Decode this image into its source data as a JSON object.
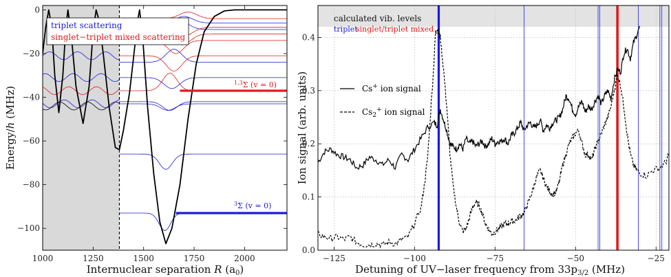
{
  "chart_data": [
    {
      "type": "line",
      "xlabel_main": "Internuclear separation ",
      "xlabel_var": "R",
      "xlabel_unit": " (a",
      "xlabel_sub": "0",
      "xlabel_close": ")",
      "ylabel_main": "Energy/",
      "ylabel_var": "h",
      "ylabel_unit": " (MHz)",
      "xlim": [
        1000,
        2210
      ],
      "ylim": [
        -110,
        2
      ],
      "xticks": [
        1000,
        1250,
        1500,
        1750,
        2000
      ],
      "yticks": [
        0,
        -20,
        -40,
        -60,
        -80,
        -100
      ],
      "xtick_labels": [
        "1000",
        "1250",
        "1500",
        "1750",
        "2000"
      ],
      "ytick_labels": [
        "0",
        "−20",
        "−40",
        "−60",
        "−80",
        "−100"
      ],
      "shaded_region": [
        1000,
        1380
      ],
      "cutoff_x": 1380,
      "legend": [
        {
          "label": "triplet scattering",
          "color": "#1a1adb"
        },
        {
          "label": "singlet−triplet mixed scattering",
          "color": "#e01b1b"
        }
      ],
      "potential_main": {
        "color": "#000000",
        "points": [
          [
            1380,
            -64
          ],
          [
            1400,
            -55
          ],
          [
            1430,
            -38
          ],
          [
            1450,
            -22
          ],
          [
            1470,
            -5
          ],
          [
            1480,
            0
          ],
          [
            1495,
            -12
          ],
          [
            1520,
            -45
          ],
          [
            1550,
            -75
          ],
          [
            1580,
            -97
          ],
          [
            1610,
            -107
          ],
          [
            1640,
            -100
          ],
          [
            1680,
            -80
          ],
          [
            1720,
            -50
          ],
          [
            1760,
            -25
          ],
          [
            1800,
            -10
          ],
          [
            1850,
            -3
          ],
          [
            1900,
            -0.5
          ],
          [
            1950,
            0
          ],
          [
            2210,
            0
          ]
        ]
      },
      "potential_inner": {
        "color": "#000000",
        "points": [
          [
            1000,
            -20
          ],
          [
            1015,
            -8
          ],
          [
            1030,
            0
          ],
          [
            1045,
            -8
          ],
          [
            1060,
            -30
          ],
          [
            1080,
            -47
          ],
          [
            1100,
            -30
          ],
          [
            1115,
            -8
          ],
          [
            1125,
            0
          ],
          [
            1140,
            -10
          ],
          [
            1165,
            -35
          ],
          [
            1200,
            -52
          ],
          [
            1230,
            -35
          ],
          [
            1250,
            -10
          ],
          [
            1265,
            0
          ],
          [
            1280,
            -5
          ],
          [
            1300,
            -20
          ],
          [
            1330,
            -45
          ],
          [
            1360,
            -63
          ],
          [
            1380,
            -64
          ]
        ]
      },
      "triplet_levels": [
        {
          "energy": -6,
          "bump": 3,
          "center": 1700,
          "width": 60
        },
        {
          "energy": -9,
          "bump": 4,
          "center": 1680,
          "width": 60
        },
        {
          "energy": -24,
          "bump": 6,
          "center": 1650,
          "width": 55
        },
        {
          "energy": -31,
          "bump": -5,
          "center": 1640,
          "width": 55
        },
        {
          "energy": -42,
          "bump": -4,
          "center": 1630,
          "width": 50
        },
        {
          "energy": -43,
          "bump": -3,
          "center": 1620,
          "width": 50
        },
        {
          "energy": -66,
          "bump": -7,
          "center": 1610,
          "width": 45
        },
        {
          "energy": -93,
          "bump": -8,
          "center": 1605,
          "width": 40
        }
      ],
      "mixed_levels": [
        {
          "energy": -4,
          "bump": 3,
          "center": 1720,
          "width": 60
        },
        {
          "energy": -8,
          "bump": -4,
          "center": 1700,
          "width": 60
        },
        {
          "energy": -11,
          "bump": -5,
          "center": 1690,
          "width": 60
        },
        {
          "energy": -14,
          "bump": -6,
          "center": 1660,
          "width": 55
        },
        {
          "energy": -21,
          "bump": -7,
          "center": 1650,
          "width": 55
        },
        {
          "energy": -37,
          "bump": 8,
          "center": 1630,
          "width": 50
        }
      ],
      "inner_wiggles": [
        {
          "energy": -21,
          "color": "#1a1adb"
        },
        {
          "energy": -31,
          "color": "#1a1adb"
        },
        {
          "energy": -37,
          "color": "#e01b1b"
        },
        {
          "energy": -43,
          "color": "#1a1adb"
        },
        {
          "energy": -44,
          "color": "#000000"
        }
      ],
      "thick_levels": [
        {
          "energy": -37,
          "x_start": 1680,
          "color": "#e01b1b",
          "label_main": "1,3",
          "label_sym": "Σ (v = 0)"
        },
        {
          "energy": -93,
          "x_start": 1660,
          "color": "#1a1adb",
          "label_main": "3",
          "label_sym": "Σ (v = 0)"
        }
      ]
    },
    {
      "type": "line",
      "xlabel": "Detuning of UV−laser frequency from 33p",
      "xlabel_sub": "3/2",
      "xlabel_unit": " (MHz)",
      "ylabel": "Ion signal (arb. units)",
      "xlim": [
        -130,
        -21
      ],
      "ylim": [
        0.0,
        0.46
      ],
      "xticks": [
        -125,
        -100,
        -75,
        -50,
        -25
      ],
      "yticks": [
        0.0,
        0.1,
        0.2,
        0.3,
        0.4
      ],
      "xtick_labels": [
        "−125",
        "−100",
        "−75",
        "−50",
        "−25"
      ],
      "ytick_labels": [
        "0.0",
        "0.1",
        "0.2",
        "0.3",
        "0.4"
      ],
      "header_band": {
        "y_from": 0.42,
        "y_to": 0.46,
        "title": "calculated vib. levels",
        "legend_triplet": "triplet",
        "legend_mixed": "singlet/triplet mixed"
      },
      "triplet_lines": [
        -92.5,
        -66,
        -43,
        -42.5,
        -30.5,
        -23.8,
        -23.2
      ],
      "triplet_thick": -92.5,
      "mixed_lines": [
        -37
      ],
      "mixed_thick": -37,
      "legend": [
        {
          "label": "Cs",
          "sup": "+",
          "tail": " ion signal",
          "style": "solid"
        },
        {
          "label": "Cs",
          "sub": "2",
          "sup": "+",
          "tail": " ion signal",
          "style": "dashed"
        }
      ],
      "series": [
        {
          "name": "Cs+ ion signal",
          "style": "solid",
          "x": [
            -130,
            -128,
            -126,
            -124,
            -122,
            -120,
            -118,
            -116,
            -114,
            -112,
            -110,
            -108,
            -106,
            -104,
            -102,
            -100,
            -98,
            -96,
            -94,
            -93,
            -92,
            -91,
            -90,
            -89,
            -88,
            -87,
            -86,
            -85,
            -84,
            -83,
            -82,
            -81,
            -80,
            -79,
            -78,
            -77,
            -76,
            -75,
            -74,
            -73,
            -72,
            -71,
            -70,
            -69,
            -68,
            -67,
            -66,
            -65,
            -64,
            -63,
            -62,
            -61,
            -60,
            -59,
            -58,
            -57,
            -56,
            -55,
            -54,
            -53,
            -52,
            -51,
            -50,
            -49,
            -48,
            -47,
            -46,
            -45,
            -44,
            -43,
            -42,
            -41,
            -40,
            -39,
            -38,
            -37,
            -36,
            -35,
            -34,
            -33,
            -32,
            -31,
            -30
          ],
          "y": [
            0.165,
            0.185,
            0.19,
            0.18,
            0.175,
            0.17,
            0.155,
            0.16,
            0.175,
            0.17,
            0.16,
            0.17,
            0.155,
            0.18,
            0.17,
            0.19,
            0.21,
            0.23,
            0.24,
            0.235,
            0.265,
            0.245,
            0.225,
            0.2,
            0.195,
            0.19,
            0.2,
            0.19,
            0.21,
            0.2,
            0.205,
            0.195,
            0.2,
            0.205,
            0.195,
            0.2,
            0.21,
            0.2,
            0.205,
            0.205,
            0.21,
            0.2,
            0.215,
            0.22,
            0.23,
            0.24,
            0.225,
            0.235,
            0.24,
            0.23,
            0.235,
            0.245,
            0.225,
            0.235,
            0.23,
            0.24,
            0.245,
            0.25,
            0.265,
            0.29,
            0.285,
            0.265,
            0.255,
            0.27,
            0.28,
            0.26,
            0.27,
            0.265,
            0.28,
            0.29,
            0.275,
            0.29,
            0.3,
            0.285,
            0.32,
            0.34,
            0.335,
            0.37,
            0.38,
            0.36,
            0.39,
            0.405,
            0.42
          ]
        },
        {
          "name": "Cs2+ ion signal",
          "style": "dashed",
          "x": [
            -130,
            -128,
            -126,
            -124,
            -122,
            -120,
            -118,
            -116,
            -114,
            -112,
            -110,
            -108,
            -106,
            -104,
            -102,
            -100,
            -98,
            -97,
            -96,
            -95,
            -94,
            -93.5,
            -93,
            -92.5,
            -92,
            -91,
            -90,
            -89,
            -88,
            -87,
            -86,
            -85,
            -84,
            -83,
            -82,
            -81,
            -80,
            -79,
            -78,
            -77,
            -76,
            -75,
            -74,
            -73,
            -72,
            -71,
            -70,
            -69,
            -68,
            -67,
            -66,
            -65,
            -64,
            -63,
            -62,
            -61,
            -60,
            -59,
            -58,
            -57,
            -56,
            -55,
            -54,
            -53,
            -52,
            -51,
            -50,
            -49,
            -48,
            -47,
            -46,
            -45,
            -44,
            -43,
            -42,
            -41,
            -40,
            -39,
            -38,
            -37,
            -36,
            -35,
            -34,
            -33,
            -32,
            -31,
            -30,
            -28,
            -26,
            -24,
            -22,
            -21
          ],
          "y": [
            0.03,
            0.025,
            0.022,
            0.025,
            0.02,
            0.025,
            0.015,
            0.01,
            0.01,
            0.012,
            0.01,
            0.015,
            0.012,
            0.02,
            0.025,
            0.05,
            0.08,
            0.12,
            0.17,
            0.26,
            0.35,
            0.41,
            0.415,
            0.41,
            0.4,
            0.34,
            0.27,
            0.18,
            0.12,
            0.08,
            0.05,
            0.035,
            0.04,
            0.06,
            0.08,
            0.09,
            0.085,
            0.07,
            0.05,
            0.04,
            0.03,
            0.035,
            0.04,
            0.045,
            0.05,
            0.05,
            0.055,
            0.055,
            0.06,
            0.065,
            0.07,
            0.085,
            0.1,
            0.12,
            0.14,
            0.15,
            0.135,
            0.12,
            0.11,
            0.105,
            0.11,
            0.13,
            0.16,
            0.18,
            0.2,
            0.21,
            0.22,
            0.225,
            0.2,
            0.18,
            0.18,
            0.17,
            0.19,
            0.205,
            0.22,
            0.235,
            0.25,
            0.27,
            0.3,
            0.33,
            0.31,
            0.27,
            0.22,
            0.18,
            0.16,
            0.15,
            0.145,
            0.14,
            0.15,
            0.155,
            0.165,
            0.18
          ]
        }
      ]
    }
  ]
}
